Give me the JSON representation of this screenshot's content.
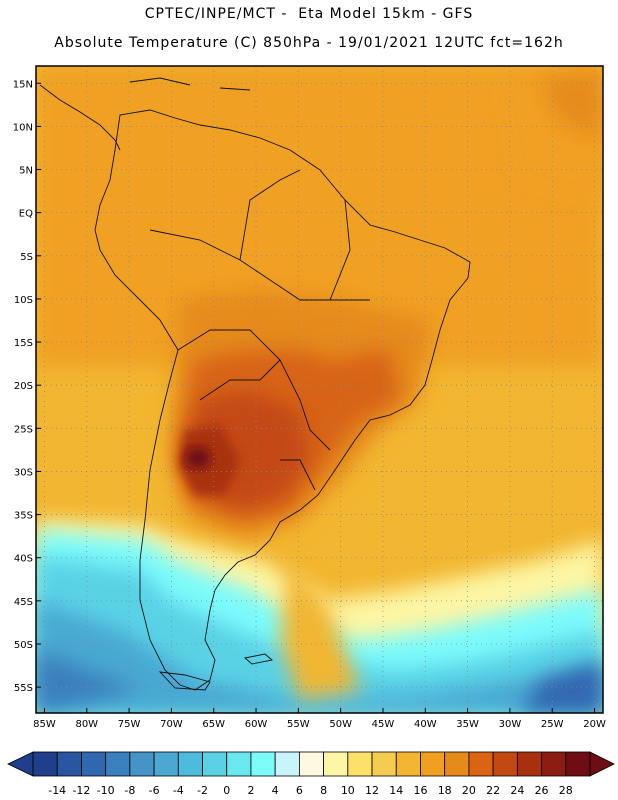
{
  "header": {
    "line1": "CPTEC/INPE/MCT -  Eta Model 15km - GFS",
    "line2": "Absolute Temperature (C) 850hPa - 19/01/2021 12UTC fct=162h"
  },
  "map": {
    "lat_labels": [
      "15N",
      "10N",
      "5N",
      "EQ",
      "5S",
      "10S",
      "15S",
      "20S",
      "25S",
      "30S",
      "35S",
      "40S",
      "45S",
      "50S",
      "55S"
    ],
    "lat_values": [
      15,
      10,
      5,
      0,
      -5,
      -10,
      -15,
      -20,
      -25,
      -30,
      -35,
      -40,
      -45,
      -50,
      -55
    ],
    "lon_labels": [
      "85W",
      "80W",
      "75W",
      "70W",
      "65W",
      "60W",
      "55W",
      "50W",
      "45W",
      "40W",
      "35W",
      "30W",
      "25W",
      "20W"
    ],
    "lon_values": [
      -85,
      -80,
      -75,
      -70,
      -65,
      -60,
      -55,
      -50,
      -45,
      -40,
      -35,
      -30,
      -25,
      -20
    ],
    "lat_range": [
      -58,
      17
    ],
    "lon_range": [
      -86,
      -19
    ],
    "gridlines": "dotted"
  },
  "colorbar": {
    "labels": [
      "-14",
      "-12",
      "-10",
      "-8",
      "-6",
      "-4",
      "-2",
      "0",
      "2",
      "4",
      "6",
      "8",
      "10",
      "12",
      "14",
      "16",
      "18",
      "20",
      "22",
      "24",
      "26",
      "28"
    ],
    "colors": [
      "#1f3f8c",
      "#2a55a0",
      "#3068b0",
      "#3a80bd",
      "#4694c7",
      "#4aa8d2",
      "#4cbcdc",
      "#5ad2e6",
      "#6ae8f0",
      "#7cfbfb",
      "#c8f4fb",
      "#fff8e0",
      "#fdf6a4",
      "#fbe06a",
      "#f6cc50",
      "#f2b630",
      "#f0a020",
      "#e68a1a",
      "#d86414",
      "#c44812",
      "#a8300e",
      "#8a1c12",
      "#6e0e14"
    ]
  },
  "chart_data": {
    "type": "heatmap",
    "variable": "Absolute Temperature (C)",
    "level": "850hPa",
    "model": "Eta Model 15km - GFS",
    "run": "19/01/2021 12UTC",
    "forecast": "fct=162h",
    "x_range": [
      -86,
      -19
    ],
    "y_range": [
      -58,
      17
    ],
    "color_scale_min": -14,
    "color_scale_max": 28,
    "features": [
      {
        "region": "Northern South America / tropical Atlantic",
        "approx_temp_c": 18
      },
      {
        "region": "Central Brazil",
        "approx_temp_c": 22
      },
      {
        "region": "Northern Argentina / Paraguay",
        "approx_temp_c": 24
      },
      {
        "region": "Northwest Argentina maximum",
        "approx_temp_c": 28
      },
      {
        "region": "Patagonia / South Pacific",
        "approx_temp_c": 2
      },
      {
        "region": "Southwest Pacific minimum",
        "approx_temp_c": -2
      }
    ]
  }
}
